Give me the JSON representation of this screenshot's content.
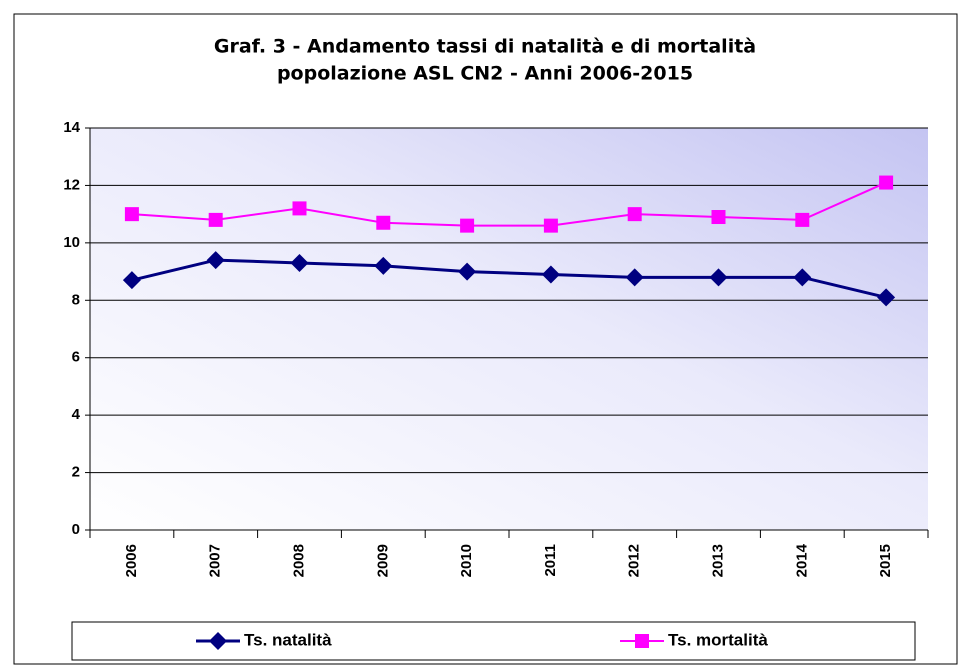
{
  "chart_data": {
    "type": "line",
    "title": [
      "Graf. 3  - Andamento tassi di natalità e di mortalità",
      "popolazione ASL CN2 - Anni 2006-2015"
    ],
    "categories": [
      "2006",
      "2007",
      "2008",
      "2009",
      "2010",
      "2011",
      "2012",
      "2013",
      "2014",
      "2015"
    ],
    "series": [
      {
        "name": "Ts. natalità",
        "color": "#000080",
        "marker": "diamond",
        "values": [
          8.7,
          9.4,
          9.3,
          9.2,
          9.0,
          8.9,
          8.8,
          8.8,
          8.8,
          8.1
        ]
      },
      {
        "name": "Ts. mortalità",
        "color": "#ff00ff",
        "marker": "square",
        "values": [
          11.0,
          10.8,
          11.2,
          10.7,
          10.6,
          10.6,
          11.0,
          10.9,
          10.8,
          12.1
        ]
      }
    ],
    "ylim": [
      0,
      14
    ],
    "yticks": [
      0,
      2,
      4,
      6,
      8,
      10,
      12,
      14
    ],
    "grid": true,
    "legend": "bottom"
  }
}
